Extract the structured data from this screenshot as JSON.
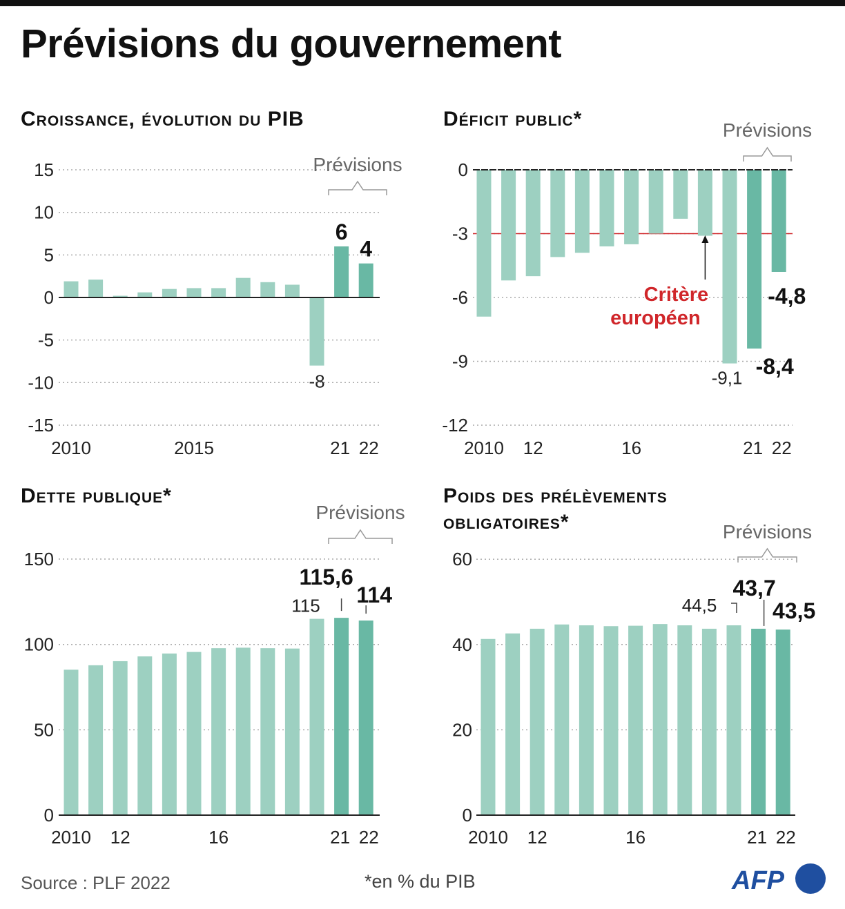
{
  "title": "Prévisions du gouvernement",
  "source": "Source : PLF 2022",
  "footnote": "*en % du PIB",
  "logo_text": "AFP",
  "colors": {
    "bar": "#9dd0c1",
    "forecast_bar": "#69b8a4",
    "criterion": "#d0262a",
    "logo": "#1f4fa0"
  },
  "chart_data": [
    {
      "type": "bar",
      "title": "Croissance, évolution du PIB",
      "forecast_label": "Prévisions",
      "years": [
        2010,
        2011,
        2012,
        2013,
        2014,
        2015,
        2016,
        2017,
        2018,
        2019,
        2020,
        2021,
        2022
      ],
      "values": [
        1.9,
        2.1,
        0.2,
        0.6,
        1.0,
        1.1,
        1.1,
        2.3,
        1.8,
        1.5,
        -8,
        6,
        4
      ],
      "forecast_years": [
        2021,
        2022
      ],
      "ylim": [
        -15,
        15
      ],
      "yticks": [
        "15",
        "10",
        "5",
        "0",
        "-5",
        "-10",
        "-15"
      ],
      "ytick_values": [
        15,
        10,
        5,
        0,
        -5,
        -10,
        -15
      ],
      "xticks": [
        {
          "year": 2010,
          "label": "2010"
        },
        {
          "year": 2015,
          "label": "2015"
        },
        {
          "year": 2021,
          "label": "21"
        },
        {
          "year": 2022,
          "label": "22"
        }
      ],
      "data_labels": [
        {
          "year": 2020,
          "text": "-8",
          "bold": false
        },
        {
          "year": 2021,
          "text": "6",
          "bold": true
        },
        {
          "year": 2022,
          "text": "4",
          "bold": true
        }
      ],
      "grid": true
    },
    {
      "type": "bar",
      "title": "Déficit public*",
      "forecast_label": "Prévisions",
      "years": [
        2010,
        2011,
        2012,
        2013,
        2014,
        2015,
        2016,
        2017,
        2018,
        2019,
        2020,
        2021,
        2022
      ],
      "values": [
        -6.9,
        -5.2,
        -5.0,
        -4.1,
        -3.9,
        -3.6,
        -3.5,
        -3.0,
        -2.3,
        -3.1,
        -9.1,
        -8.4,
        -4.8
      ],
      "forecast_years": [
        2021,
        2022
      ],
      "ylim": [
        -12,
        0
      ],
      "yticks": [
        "0",
        "-3",
        "-6",
        "-9",
        "-12"
      ],
      "ytick_values": [
        0,
        -3,
        -6,
        -9,
        -12
      ],
      "xticks": [
        {
          "year": 2010,
          "label": "2010"
        },
        {
          "year": 2012,
          "label": "12"
        },
        {
          "year": 2016,
          "label": "16"
        },
        {
          "year": 2021,
          "label": "21"
        },
        {
          "year": 2022,
          "label": "22"
        }
      ],
      "data_labels": [
        {
          "year": 2020,
          "text": "-9,1",
          "bold": false
        },
        {
          "year": 2021,
          "text": "-8,4",
          "bold": true
        },
        {
          "year": 2022,
          "text": "-4,8",
          "bold": true
        }
      ],
      "reference_line": {
        "value": -3,
        "label_lines": [
          "Critère",
          "européen"
        ]
      },
      "grid": true
    },
    {
      "type": "bar",
      "title": "Dette publique*",
      "forecast_label": "Prévisions",
      "years": [
        2010,
        2011,
        2012,
        2013,
        2014,
        2015,
        2016,
        2017,
        2018,
        2019,
        2020,
        2021,
        2022
      ],
      "values": [
        85.2,
        87.8,
        90.2,
        93.0,
        94.7,
        95.6,
        97.8,
        98.1,
        97.8,
        97.6,
        115,
        115.6,
        114
      ],
      "forecast_years": [
        2021,
        2022
      ],
      "ylim": [
        0,
        150
      ],
      "yticks": [
        "150",
        "100",
        "50",
        "0"
      ],
      "ytick_values": [
        150,
        100,
        50,
        0
      ],
      "xticks": [
        {
          "year": 2010,
          "label": "2010"
        },
        {
          "year": 2012,
          "label": "12"
        },
        {
          "year": 2016,
          "label": "16"
        },
        {
          "year": 2021,
          "label": "21"
        },
        {
          "year": 2022,
          "label": "22"
        }
      ],
      "data_labels": [
        {
          "year": 2020,
          "text": "115",
          "bold": false
        },
        {
          "year": 2021,
          "text": "115,6",
          "bold": true
        },
        {
          "year": 2022,
          "text": "114",
          "bold": true
        }
      ],
      "grid": true
    },
    {
      "type": "bar",
      "title": "Poids des prélèvements obligatoires*",
      "forecast_label": "Prévisions",
      "years": [
        2010,
        2011,
        2012,
        2013,
        2014,
        2015,
        2016,
        2017,
        2018,
        2019,
        2020,
        2021,
        2022
      ],
      "values": [
        41.3,
        42.6,
        43.7,
        44.7,
        44.5,
        44.3,
        44.4,
        44.8,
        44.5,
        43.7,
        44.5,
        43.7,
        43.5
      ],
      "forecast_years": [
        2021,
        2022
      ],
      "ylim": [
        0,
        60
      ],
      "yticks": [
        "60",
        "40",
        "20",
        "0"
      ],
      "ytick_values": [
        60,
        40,
        20,
        0
      ],
      "xticks": [
        {
          "year": 2010,
          "label": "2010"
        },
        {
          "year": 2012,
          "label": "12"
        },
        {
          "year": 2016,
          "label": "16"
        },
        {
          "year": 2021,
          "label": "21"
        },
        {
          "year": 2022,
          "label": "22"
        }
      ],
      "data_labels": [
        {
          "year": 2020,
          "text": "44,5",
          "bold": false
        },
        {
          "year": 2021,
          "text": "43,7",
          "bold": true
        },
        {
          "year": 2022,
          "text": "43,5",
          "bold": true
        }
      ],
      "grid": true
    }
  ]
}
